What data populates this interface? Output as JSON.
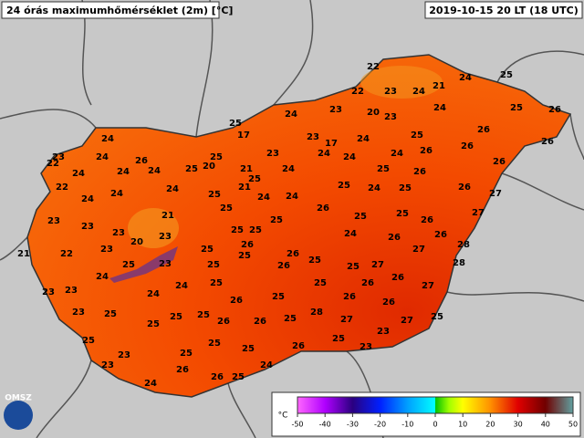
{
  "header": {
    "title": "24 órás maximumhőmérséklet (2m) [°C]",
    "timestamp": "2019-10-15 20 LT (18 UTC)"
  },
  "stations": [
    22,
    24,
    25,
    21,
    22,
    23,
    24,
    25,
    26,
    24,
    23,
    20,
    23,
    24,
    25,
    17,
    23,
    17,
    24,
    25,
    26,
    26,
    24,
    23,
    24,
    24,
    24,
    26,
    26,
    26,
    23,
    22,
    26,
    25,
    20,
    25,
    24,
    24,
    24,
    24,
    21,
    24,
    25,
    25,
    26,
    22,
    24,
    24,
    24,
    25,
    21,
    24,
    24,
    25,
    24,
    25,
    26,
    27,
    26,
    25,
    23,
    23,
    23,
    21,
    25,
    25,
    25,
    25,
    26,
    27,
    21,
    22,
    23,
    20,
    23,
    25,
    26,
    25,
    24,
    26,
    26,
    28,
    25,
    26,
    25,
    27,
    27,
    25,
    23,
    25,
    24,
    25,
    26,
    28,
    23,
    23,
    26,
    26,
    27,
    24,
    24,
    25,
    25,
    25,
    26,
    26,
    23,
    25,
    25,
    26,
    25,
    26,
    25,
    28,
    27,
    25,
    25,
    26,
    27,
    23,
    25,
    25,
    25,
    25,
    26,
    23,
    23,
    25,
    24,
    23,
    26,
    24,
    26,
    25
  ],
  "legend": {
    "unit": "°C",
    "ticks": [
      -50,
      -40,
      -30,
      -20,
      -10,
      0,
      10,
      20,
      30,
      40,
      50
    ]
  },
  "logo": "OMSZ"
}
